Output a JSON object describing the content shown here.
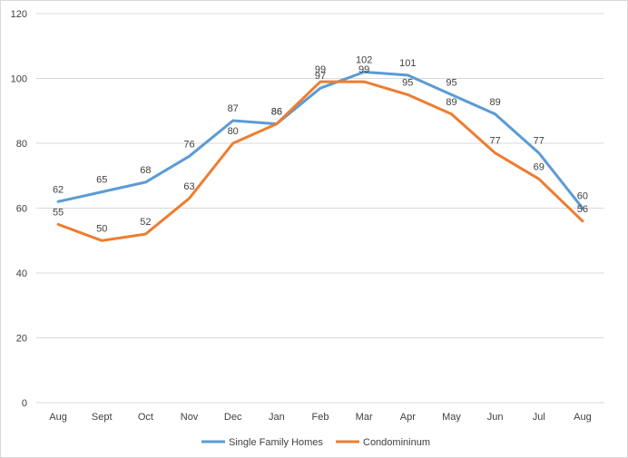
{
  "chart_data": {
    "type": "line",
    "title": "",
    "xlabel": "",
    "ylabel": "",
    "ylim": [
      0,
      120
    ],
    "yticks": [
      0,
      20,
      40,
      60,
      80,
      100,
      120
    ],
    "grid": true,
    "legend_position": "bottom",
    "categories": [
      "Aug",
      "Sept",
      "Oct",
      "Nov",
      "Dec",
      "Jan",
      "Feb",
      "Mar",
      "Apr",
      "May",
      "Jun",
      "Jul",
      "Aug"
    ],
    "series": [
      {
        "name": "Single Family Homes",
        "color": "#5b9bd5",
        "values": [
          62,
          65,
          68,
          76,
          87,
          86,
          97,
          102,
          101,
          95,
          89,
          77,
          60
        ]
      },
      {
        "name": "Condomininum",
        "color": "#ed7d31",
        "values": [
          55,
          50,
          52,
          63,
          80,
          86,
          99,
          99,
          95,
          89,
          77,
          69,
          56
        ]
      }
    ]
  }
}
